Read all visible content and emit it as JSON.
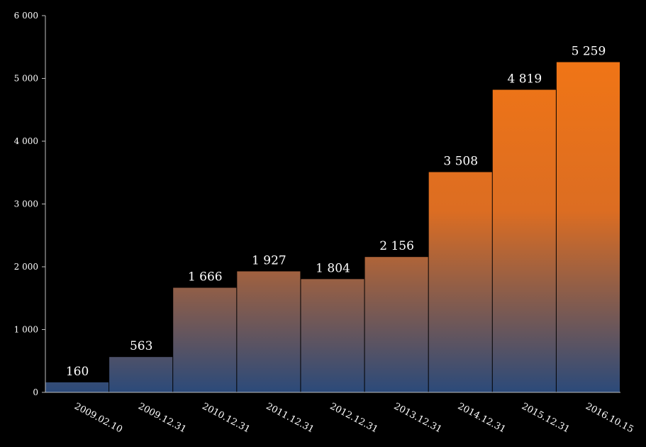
{
  "chart_data": {
    "type": "bar",
    "categories": [
      "2009.02.10",
      "2009.12.31",
      "2010.12.31",
      "2011.12.31",
      "2012.12.31",
      "2013.12.31",
      "2014.12.31",
      "2015.12.31",
      "2016.10.15"
    ],
    "values": [
      160,
      563,
      1666,
      1927,
      1804,
      2156,
      3508,
      4819,
      5259
    ],
    "data_labels": [
      "160",
      "563",
      "1 666",
      "1 927",
      "1 804",
      "2 156",
      "3 508",
      "4 819",
      "5 259"
    ],
    "yticks": [
      0,
      1000,
      2000,
      3000,
      4000,
      5000,
      6000
    ],
    "ytick_labels": [
      "0",
      "1 000",
      "2 000",
      "3 000",
      "4 000",
      "5 000",
      "6 000"
    ],
    "ylim": [
      0,
      6000
    ],
    "title": "",
    "xlabel": "",
    "ylabel": "",
    "grid": false,
    "legend": "none",
    "colors": {
      "background": "#000000",
      "bar_top": "#f07516",
      "bar_bottom": "#2b4a7a",
      "axis": "#bfbfbf",
      "text": "#ffffff"
    }
  }
}
